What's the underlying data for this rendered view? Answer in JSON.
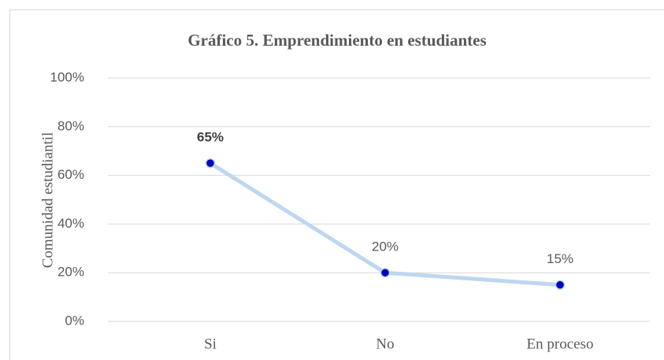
{
  "chart_data": {
    "type": "line",
    "title": "Gráfico 5. Emprendimiento en estudiantes",
    "y_label": "Comunidad estudiantil",
    "categories": [
      "Si",
      "No",
      "En proceso"
    ],
    "series": [
      {
        "name": "Comunidad estudiantil",
        "color": "#bdd7ee",
        "marker_color": "#0000c0",
        "values": [
          65,
          20,
          15
        ],
        "value_labels": [
          "65%",
          "20%",
          "15%"
        ]
      }
    ],
    "ylim": [
      0,
      100
    ],
    "yticks": [
      {
        "value": 0,
        "label": "0%"
      },
      {
        "value": 20,
        "label": "20%"
      },
      {
        "value": 40,
        "label": "40%"
      },
      {
        "value": 60,
        "label": "60%"
      },
      {
        "value": 80,
        "label": "80%"
      },
      {
        "value": 100,
        "label": "100%"
      }
    ],
    "grid": true
  }
}
